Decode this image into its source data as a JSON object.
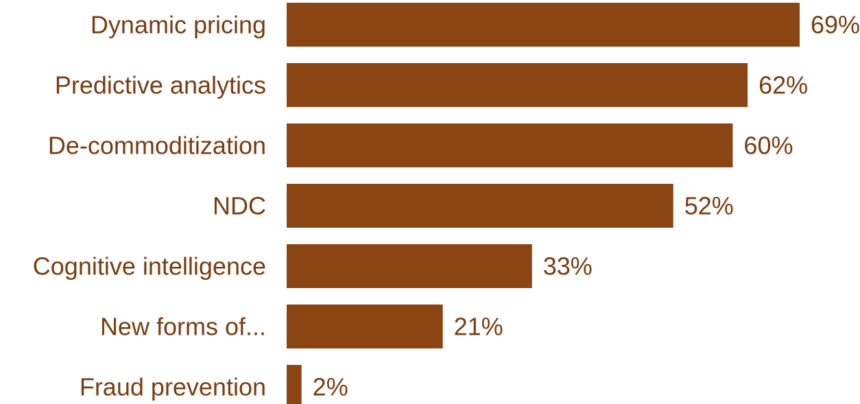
{
  "colors": {
    "bar": "#8b4513",
    "text": "#7a3d12"
  },
  "chart_data": {
    "type": "bar",
    "orientation": "horizontal",
    "categories": [
      "Dynamic pricing",
      "Predictive analytics",
      "De-commoditization",
      "NDC",
      "Cognitive intelligence",
      "New forms of...",
      "Fraud prevention"
    ],
    "values": [
      69,
      62,
      60,
      52,
      33,
      21,
      2
    ],
    "value_labels": [
      "69%",
      "62%",
      "60%",
      "52%",
      "33%",
      "21%",
      "2%"
    ],
    "unit": "%",
    "xlim": [
      0,
      69
    ],
    "grid": false,
    "legend": "none"
  }
}
